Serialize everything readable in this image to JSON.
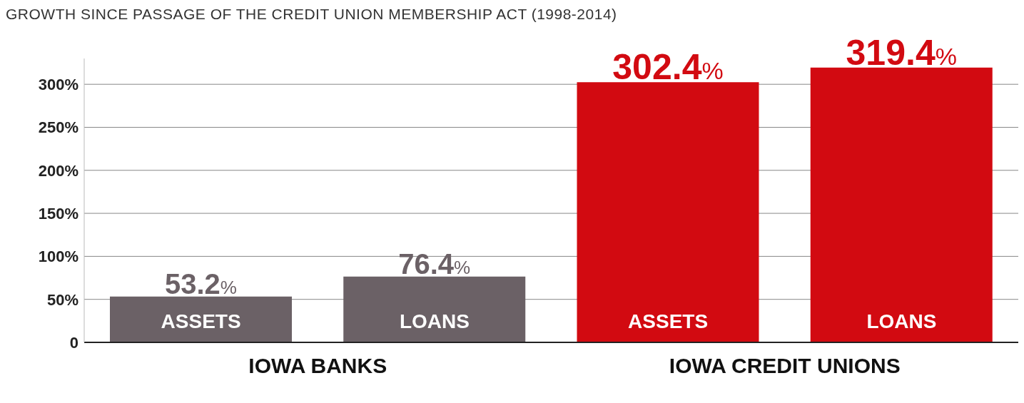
{
  "chart_data": {
    "type": "bar",
    "title": "GROWTH SINCE PASSAGE OF THE CREDIT UNION MEMBERSHIP ACT (1998-2014)",
    "categories": [
      "ASSETS",
      "LOANS",
      "ASSETS",
      "LOANS"
    ],
    "values": [
      53.2,
      76.4,
      302.4,
      319.4
    ],
    "colors": [
      "#6b6166",
      "#6b6166",
      "#d20a11",
      "#d20a11"
    ],
    "value_labels": [
      "53.2%",
      "76.4%",
      "302.4%",
      "319.4%"
    ],
    "annotations": [
      "IOWA BANKS",
      "IOWA CREDIT UNIONS"
    ],
    "ylim": [
      0,
      330
    ],
    "yticks": [
      {
        "value": 0,
        "label": "0"
      },
      {
        "value": 50,
        "label": "50%"
      },
      {
        "value": 100,
        "label": "100%"
      },
      {
        "value": 150,
        "label": "150%"
      },
      {
        "value": 200,
        "label": "200%"
      },
      {
        "value": 250,
        "label": "250%"
      },
      {
        "value": 300,
        "label": "300%"
      }
    ],
    "grid": "y"
  }
}
